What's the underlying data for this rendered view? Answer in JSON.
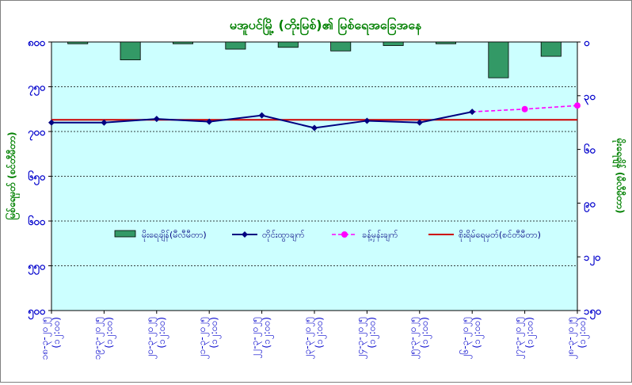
{
  "chart_data": {
    "type": "line",
    "title": "မအူပင်မြို့ (တိုးမြစ်)၏ မြစ်ရေအခြေအနေ",
    "ylabel_left": "မြစ်ရေမှတ် (စင်တီမီတာ)",
    "ylabel_right": "မိုးရေချိန် (မီလီမီတာ)",
    "left_axis": {
      "range": [
        500,
        800
      ],
      "ticks": [
        {
          "value": 500,
          "label": "၅၀၀"
        },
        {
          "value": 550,
          "label": "၅၅၀"
        },
        {
          "value": 600,
          "label": "၆၀၀"
        },
        {
          "value": 650,
          "label": "၆၅၀"
        },
        {
          "value": 700,
          "label": "၇၀၀"
        },
        {
          "value": 750,
          "label": "၇၅၀"
        },
        {
          "value": 800,
          "label": "၈၀၀"
        }
      ]
    },
    "right_axis": {
      "range": [
        0,
        150
      ],
      "inverted": true,
      "ticks": [
        {
          "value": 0,
          "label": "၀"
        },
        {
          "value": 30,
          "label": "၃၀"
        },
        {
          "value": 60,
          "label": "၆၀"
        },
        {
          "value": 90,
          "label": "၉၀"
        },
        {
          "value": 120,
          "label": "၁၂၀"
        },
        {
          "value": 150,
          "label": "၁၅၀"
        }
      ]
    },
    "categories": [
      "၁၈-၃-၂၀၂၅ (၁၂:၀၀)",
      "၁၉-၃-၂၀၂၅ (၁၂:၀၀)",
      "၂၀-၃-၂၀၂၅ (၁၂:၀၀)",
      "၂၁-၃-၂၀၂၅ (၁၂:၀၀)",
      "၂၂-၃-၂၀၂၅ (၁၂:၀၀)",
      "၂၃-၃-၂၀၂၅ (၁၂:၀၀)",
      "၂၄-၃-၂၀၂၅ (၁၂:၀၀)",
      "၂၅-၃-၂၀၂၅ (၁၂:၀၀)",
      "၂၆-၃-၂၀၂၅ (၁၂:၀၀)",
      "၂၇-၃-၂၀၂၅ (၁၂:၀၀)",
      "၂၈-၃-၂၀၂၅ (၁၂:၀၀)"
    ],
    "series": [
      {
        "name": "မိုးရေချိန်(မီလီမီတာ)",
        "kind": "bar",
        "axis": "right",
        "color": "#339966",
        "values": [
          1,
          10,
          1,
          4,
          3,
          5,
          2,
          1,
          20,
          8,
          null
        ]
      },
      {
        "name": "တိုင်းထွာချက်",
        "kind": "line",
        "axis": "left",
        "color": "#000080",
        "values": [
          710,
          710,
          714,
          711,
          718,
          704,
          712,
          710,
          722,
          null,
          null
        ]
      },
      {
        "name": "ခန့်မှန်းချက်",
        "kind": "line",
        "axis": "left",
        "color": "#ff00ff",
        "dashed": true,
        "values": [
          null,
          null,
          null,
          null,
          null,
          null,
          null,
          null,
          null,
          725,
          729
        ]
      },
      {
        "name": "စိုးရိမ်ရေမှတ်(စင်တီမီတာ)",
        "kind": "hline",
        "axis": "left",
        "color": "#cc0000",
        "value": 713
      }
    ],
    "legend_placement": "inside-lower-middle",
    "grid": "horizontal-dashed",
    "plot_background": "#ccffff"
  }
}
